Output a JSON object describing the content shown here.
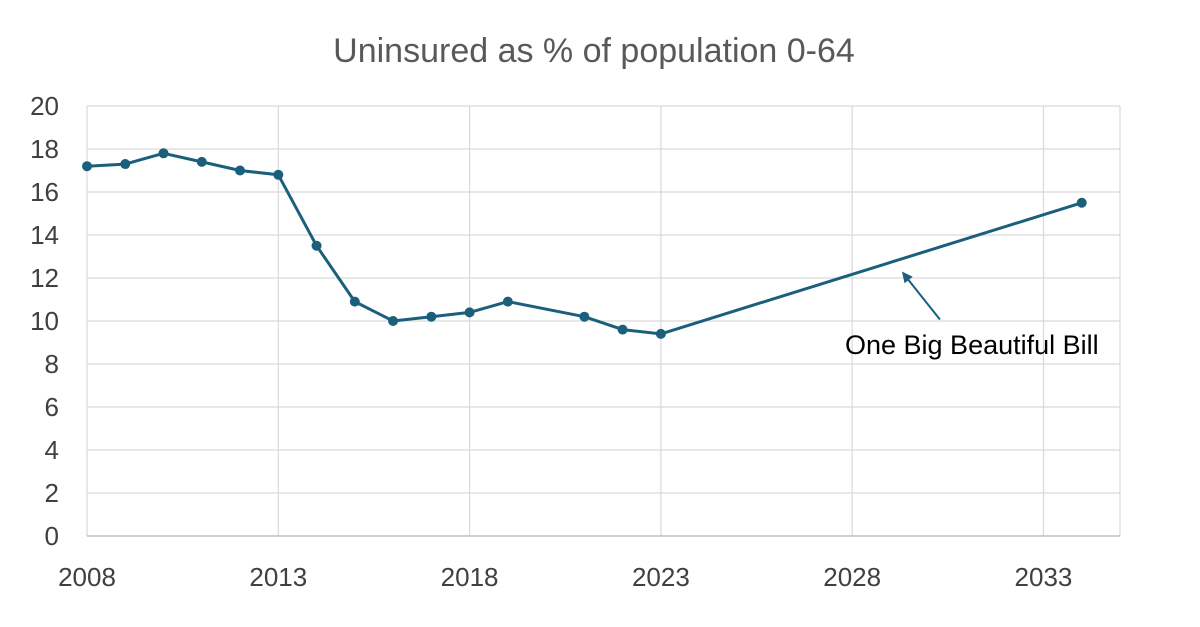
{
  "chart_data": {
    "type": "line",
    "title": "Uninsured as % of population 0-64",
    "xlabel": "",
    "ylabel": "",
    "xlim": [
      2008,
      2035
    ],
    "ylim": [
      0,
      20
    ],
    "x_ticks": [
      2008,
      2013,
      2018,
      2023,
      2028,
      2033
    ],
    "y_ticks": [
      0,
      2,
      4,
      6,
      8,
      10,
      12,
      14,
      16,
      18,
      20
    ],
    "grid": true,
    "legend": "none",
    "series": [
      {
        "color": "#1b5f7d",
        "points": [
          {
            "x": 2008,
            "y": 17.2
          },
          {
            "x": 2009,
            "y": 17.3
          },
          {
            "x": 2010,
            "y": 17.8
          },
          {
            "x": 2011,
            "y": 17.4
          },
          {
            "x": 2012,
            "y": 17.0
          },
          {
            "x": 2013,
            "y": 16.8
          },
          {
            "x": 2014,
            "y": 13.5
          },
          {
            "x": 2015,
            "y": 10.9
          },
          {
            "x": 2016,
            "y": 10.0
          },
          {
            "x": 2017,
            "y": 10.2
          },
          {
            "x": 2018,
            "y": 10.4
          },
          {
            "x": 2019,
            "y": 10.9
          },
          {
            "x": 2021,
            "y": 10.2
          },
          {
            "x": 2022,
            "y": 9.6
          },
          {
            "x": 2023,
            "y": 9.4
          },
          {
            "x": 2034,
            "y": 15.5
          }
        ]
      }
    ],
    "annotations": [
      {
        "text": "One Big Beautiful Bill",
        "arrow": true,
        "points_to": {
          "x": 2029.3,
          "y": 12.3
        }
      }
    ]
  }
}
